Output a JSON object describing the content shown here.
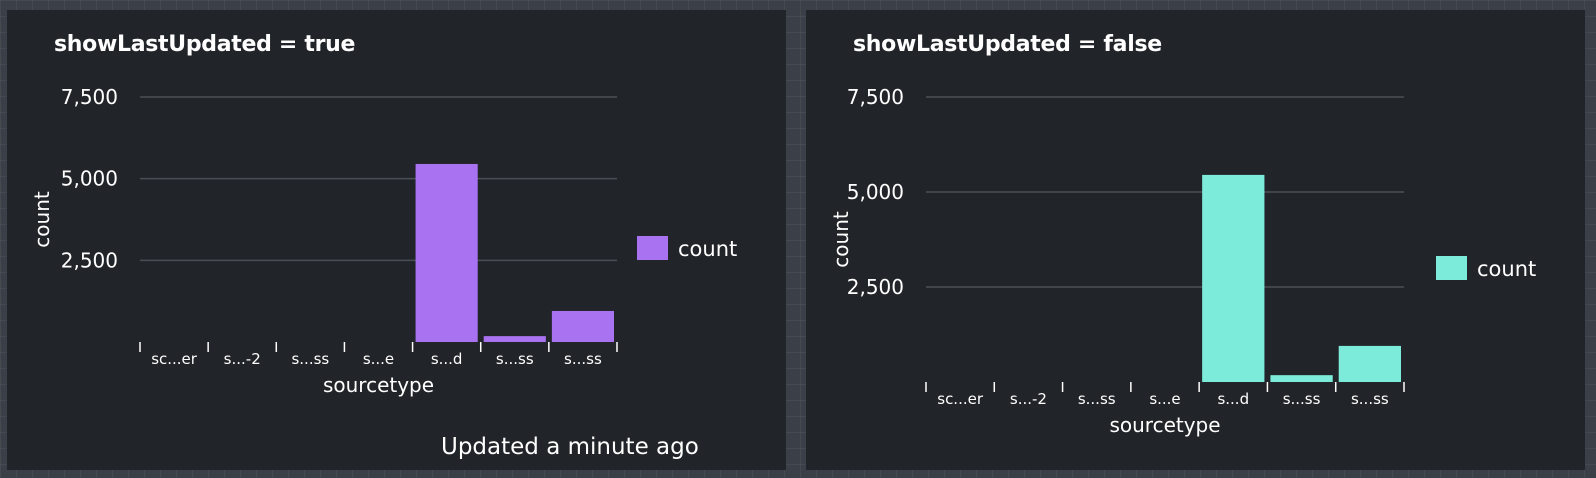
{
  "panels": [
    {
      "title": "showLastUpdated = true",
      "status_text": "Updated a minute ago",
      "colors": {
        "bar": "#a872f0"
      },
      "chart_data": {
        "type": "bar",
        "categories": [
          "sc...er",
          "s...-2",
          "s...ss",
          "s...e",
          "s...d",
          "s...ss",
          "s...ss"
        ],
        "series": [
          {
            "name": "count",
            "values": [
              0,
              0,
              0,
              0,
              5450,
              180,
              950
            ]
          }
        ],
        "xlabel": "sourcetype",
        "ylabel": "count",
        "ylim": [
          0,
          7500
        ],
        "yticks": [
          "7,500",
          "5,000",
          "2,500"
        ],
        "ytick_values": [
          7500,
          5000,
          2500
        ],
        "grid": true,
        "legend": "right"
      }
    },
    {
      "title": "showLastUpdated = false",
      "status_text": "",
      "colors": {
        "bar": "#7debd9"
      },
      "chart_data": {
        "type": "bar",
        "categories": [
          "sc...er",
          "s...-2",
          "s...ss",
          "s...e",
          "s...d",
          "s...ss",
          "s...ss"
        ],
        "series": [
          {
            "name": "count",
            "values": [
              0,
              0,
              0,
              0,
              5450,
              180,
              950
            ]
          }
        ],
        "xlabel": "sourcetype",
        "ylabel": "count",
        "ylim": [
          0,
          7500
        ],
        "yticks": [
          "7,500",
          "5,000",
          "2,500"
        ],
        "ytick_values": [
          7500,
          5000,
          2500
        ],
        "grid": true,
        "legend": "right"
      }
    }
  ]
}
